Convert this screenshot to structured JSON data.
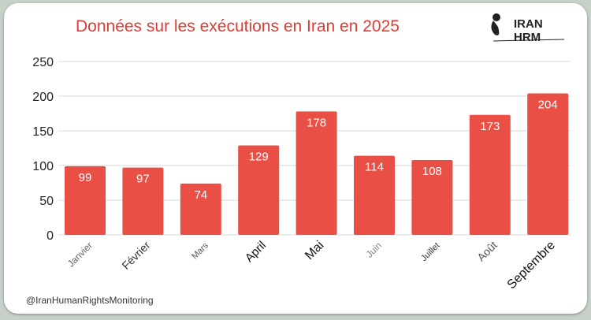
{
  "chart_data": {
    "type": "bar",
    "title": "Données sur les exécutions en Iran en 2025",
    "categories": [
      "Janvier",
      "Février",
      "Mars",
      "April",
      "Mai",
      "Juin",
      "Juillet",
      "Août",
      "Septembre"
    ],
    "values": [
      99,
      97,
      74,
      129,
      178,
      114,
      108,
      173,
      204
    ],
    "ylim": [
      0,
      250
    ],
    "yticks": [
      0,
      50,
      100,
      150,
      200,
      250
    ],
    "grid": true,
    "bar_color": "#ea4f46",
    "title_color": "#e03b34"
  },
  "logo": {
    "text": "IRAN HRM"
  },
  "footer": {
    "handle": "@IranHumanRightsMonitoring"
  }
}
